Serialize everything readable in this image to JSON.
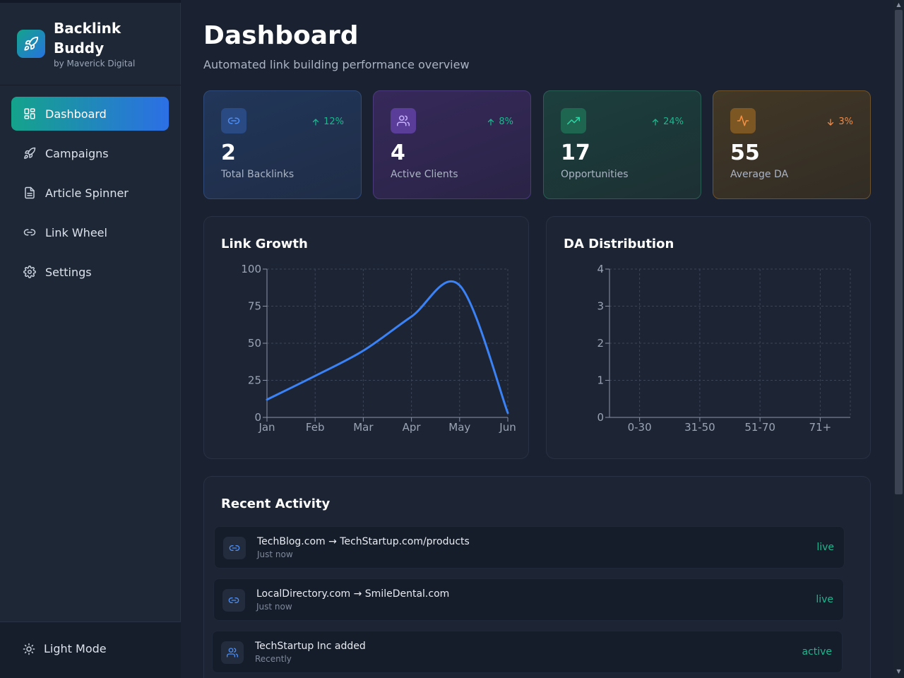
{
  "brand": {
    "name": "Backlink Buddy",
    "subtitle": "by Maverick Digital"
  },
  "nav": [
    {
      "label": "Dashboard",
      "icon": "dashboard-grid-icon",
      "active": true
    },
    {
      "label": "Campaigns",
      "icon": "rocket-icon",
      "active": false
    },
    {
      "label": "Article Spinner",
      "icon": "document-icon",
      "active": false
    },
    {
      "label": "Link Wheel",
      "icon": "link-icon",
      "active": false
    },
    {
      "label": "Settings",
      "icon": "gear-icon",
      "active": false
    }
  ],
  "theme_toggle": {
    "label": "Light Mode",
    "icon": "sun-icon"
  },
  "header": {
    "title": "Dashboard",
    "subtitle": "Automated link building performance overview"
  },
  "stats": [
    {
      "value": "2",
      "label": "Total Backlinks",
      "change": "12%",
      "direction": "up",
      "icon": "link-icon",
      "color": "#3b82f6"
    },
    {
      "value": "4",
      "label": "Active Clients",
      "change": "8%",
      "direction": "up",
      "icon": "users-icon",
      "color": "#a78bfa"
    },
    {
      "value": "17",
      "label": "Opportunities",
      "change": "24%",
      "direction": "up",
      "icon": "trending-up-icon",
      "color": "#22c59a"
    },
    {
      "value": "55",
      "label": "Average DA",
      "change": "3%",
      "direction": "down",
      "icon": "activity-icon",
      "color": "#f59042"
    }
  ],
  "chart_data": [
    {
      "type": "line",
      "title": "Link Growth",
      "categories": [
        "Jan",
        "Feb",
        "Mar",
        "Apr",
        "May",
        "Jun"
      ],
      "series": [
        {
          "values": [
            12,
            28,
            45,
            68,
            89,
            3
          ]
        }
      ],
      "ylim": [
        0,
        100
      ],
      "yticks": [
        0,
        25,
        50,
        75,
        100
      ],
      "grid": true,
      "color": "#3b82f6"
    },
    {
      "type": "bar",
      "title": "DA Distribution",
      "categories": [
        "0-30",
        "31-50",
        "51-70",
        "71+"
      ],
      "values": [
        0,
        0,
        0,
        0
      ],
      "ylim": [
        0,
        4
      ],
      "yticks": [
        0,
        1,
        2,
        3,
        4
      ],
      "grid": true
    }
  ],
  "activity": {
    "title": "Recent Activity",
    "items": [
      {
        "title": "TechBlog.com → TechStartup.com/products",
        "time": "Just now",
        "status": "live",
        "icon": "link-icon"
      },
      {
        "title": "LocalDirectory.com → SmileDental.com",
        "time": "Just now",
        "status": "live",
        "icon": "link-icon"
      },
      {
        "title": "TechStartup Inc added",
        "time": "Recently",
        "status": "active",
        "icon": "users-icon"
      }
    ]
  }
}
